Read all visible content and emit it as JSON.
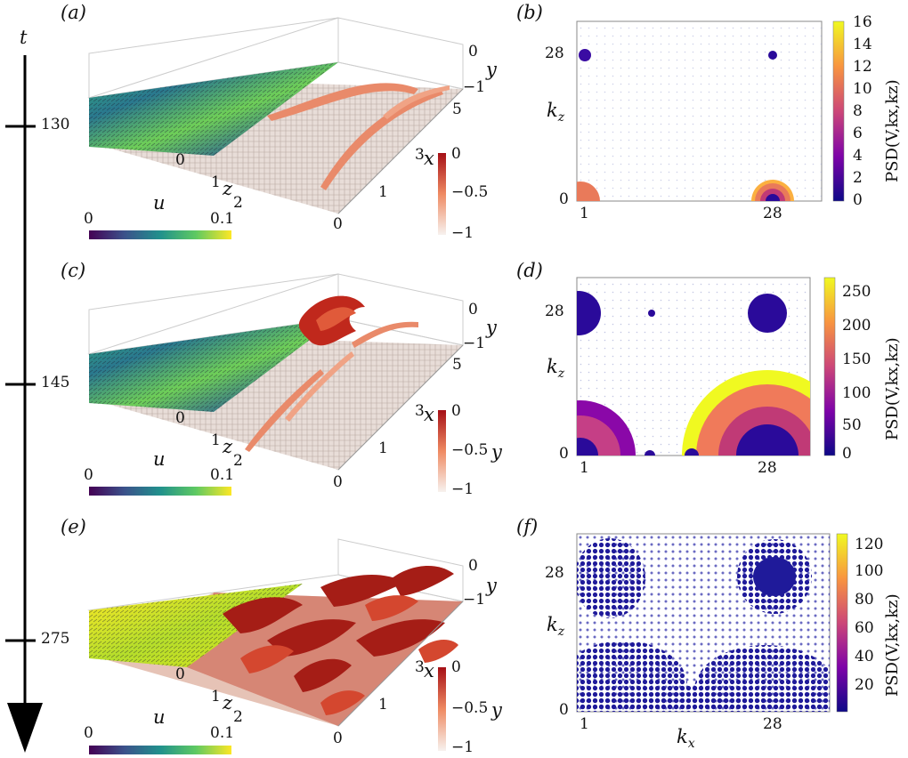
{
  "timeline": {
    "label": "t",
    "ticks": [
      "130",
      "145",
      "275"
    ]
  },
  "panels": {
    "a": "(a)",
    "b": "(b)",
    "c": "(c)",
    "d": "(d)",
    "e": "(e)",
    "f": "(f)"
  },
  "cube": {
    "z_ticks": [
      "0",
      "1",
      "2"
    ],
    "x_ticks": [
      "0",
      "1",
      "3"
    ],
    "x_tick_extra": "5",
    "y_ticks": [
      "0",
      "−1"
    ],
    "z_label": "z",
    "x_label": "x",
    "y_label": "y"
  },
  "u_bar": {
    "label": "u",
    "min": "0",
    "max": "0.1"
  },
  "y_bar": {
    "ticks": [
      "0",
      "−0.5",
      "−1"
    ],
    "label": "y"
  },
  "psd_plots": {
    "b": {
      "cbar_ticks": [
        "16",
        "14",
        "12",
        "10",
        "8",
        "6",
        "4",
        "2",
        "0"
      ],
      "cbar_label": "PSD(V,kx,kz)"
    },
    "d": {
      "cbar_ticks": [
        "250",
        "200",
        "150",
        "100",
        "50",
        "0"
      ],
      "cbar_label": "PSD(V,kx,kz)"
    },
    "f": {
      "cbar_ticks": [
        "120",
        "100",
        "80",
        "60",
        "40",
        "20"
      ],
      "cbar_label": "PSD(V,kx,kz)"
    },
    "x_ticks": [
      "1",
      "28"
    ],
    "y_ticks": [
      "0",
      "28"
    ],
    "x_label": "k",
    "x_sub": "x",
    "y_label": "k",
    "y_sub": "z"
  },
  "colors": {
    "viridis_start": "#440154",
    "viridis_end": "#fde725",
    "plasma_start": "#0d0887",
    "plasma_end": "#f0f921",
    "reds_start": "#f7f2ef",
    "reds_end": "#a50f15"
  }
}
